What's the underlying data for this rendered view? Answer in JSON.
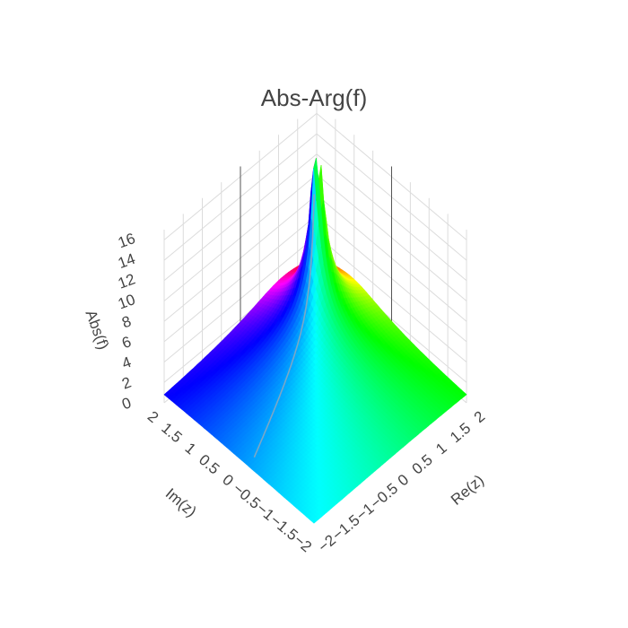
{
  "chart_data": {
    "type": "surface",
    "title": "Abs-Arg(f)",
    "x": {
      "label": "Re(z)",
      "range": [
        -2,
        2
      ],
      "ticks": [
        -2,
        -1.5,
        -1,
        -0.5,
        0,
        0.5,
        1,
        1.5,
        2
      ],
      "tick_labels": [
        "−2",
        "−1.5",
        "−1",
        "−0.5",
        "0",
        "0.5",
        "1",
        "1.5",
        "2"
      ]
    },
    "y": {
      "label": "Im(z)",
      "range": [
        -2,
        2
      ],
      "ticks": [
        -2,
        -1.5,
        -1,
        -0.5,
        0,
        0.5,
        1,
        1.5,
        2
      ],
      "tick_labels": [
        "−2",
        "−1.5",
        "−1",
        "−0.5",
        "0",
        "0.5",
        "1",
        "1.5",
        "2"
      ]
    },
    "z": {
      "label": "Abs(f)",
      "range": [
        0,
        17
      ],
      "ticks": [
        0,
        2,
        4,
        6,
        8,
        10,
        12,
        14,
        16
      ],
      "tick_labels": [
        "0",
        "2",
        "4",
        "6",
        "8",
        "10",
        "12",
        "14",
        "16"
      ]
    },
    "surface": {
      "height": "abs(f)",
      "color": "arg(f) hue wheel",
      "peaks": [
        {
          "re": 1.1,
          "im": 1.15,
          "abs": 16.5
        },
        {
          "re": 1.2,
          "im": 1.05,
          "abs": 11.0
        }
      ],
      "branch_cut": "arg wraps along a line from about (-1.8, -0.2) to the peak"
    },
    "grid": true,
    "colors": {
      "grid": "#dcdcdc",
      "zero_line": "#555555",
      "text": "#444444",
      "branch_cut": "#7aa7c7"
    }
  }
}
